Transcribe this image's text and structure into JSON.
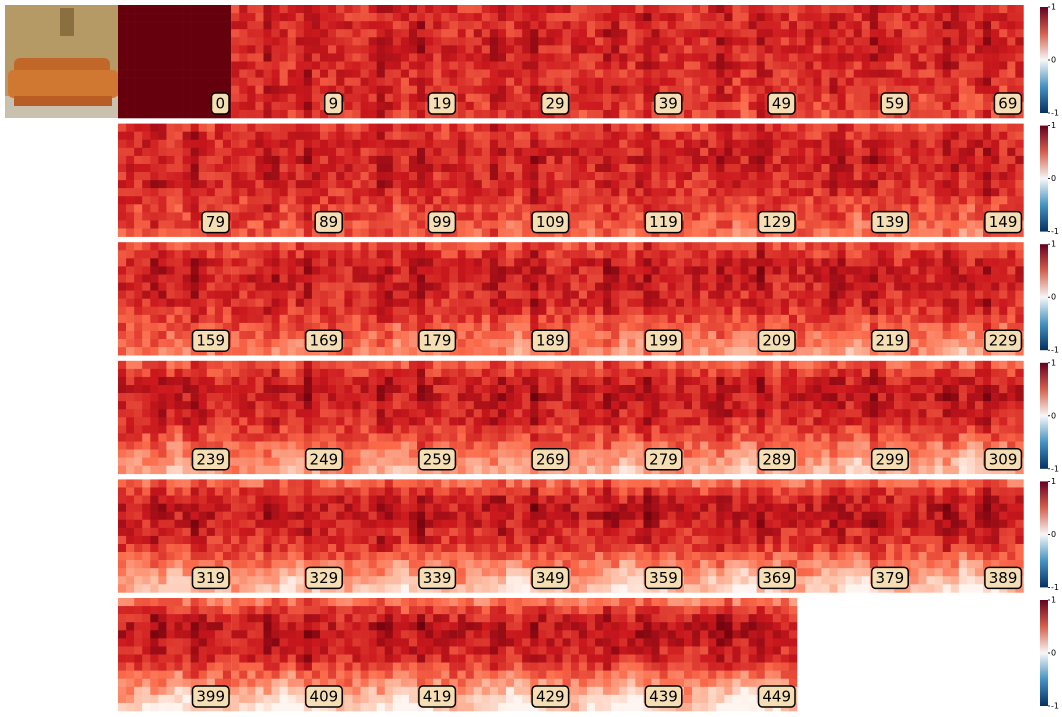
{
  "panels": [
    {
      "label": 0
    },
    {
      "label": 9
    },
    {
      "label": 19
    },
    {
      "label": 29
    },
    {
      "label": 39
    },
    {
      "label": 49
    },
    {
      "label": 59
    },
    {
      "label": 69
    },
    {
      "label": 79
    },
    {
      "label": 89
    },
    {
      "label": 99
    },
    {
      "label": 109
    },
    {
      "label": 119
    },
    {
      "label": 129
    },
    {
      "label": 139
    },
    {
      "label": 149
    },
    {
      "label": 159
    },
    {
      "label": 169
    },
    {
      "label": 179
    },
    {
      "label": 189
    },
    {
      "label": 199
    },
    {
      "label": 209
    },
    {
      "label": 219
    },
    {
      "label": 229
    },
    {
      "label": 239
    },
    {
      "label": 249
    },
    {
      "label": 259
    },
    {
      "label": 269
    },
    {
      "label": 279
    },
    {
      "label": 289
    },
    {
      "label": 299
    },
    {
      "label": 309
    },
    {
      "label": 319
    },
    {
      "label": 329
    },
    {
      "label": 339
    },
    {
      "label": 349
    },
    {
      "label": 359
    },
    {
      "label": 369
    },
    {
      "label": 379
    },
    {
      "label": 389
    },
    {
      "label": 399
    },
    {
      "label": 409
    },
    {
      "label": 419
    },
    {
      "label": 429
    },
    {
      "label": 439
    },
    {
      "label": 449
    }
  ],
  "colorbar": {
    "ticks": [
      1,
      0,
      -1
    ]
  }
}
